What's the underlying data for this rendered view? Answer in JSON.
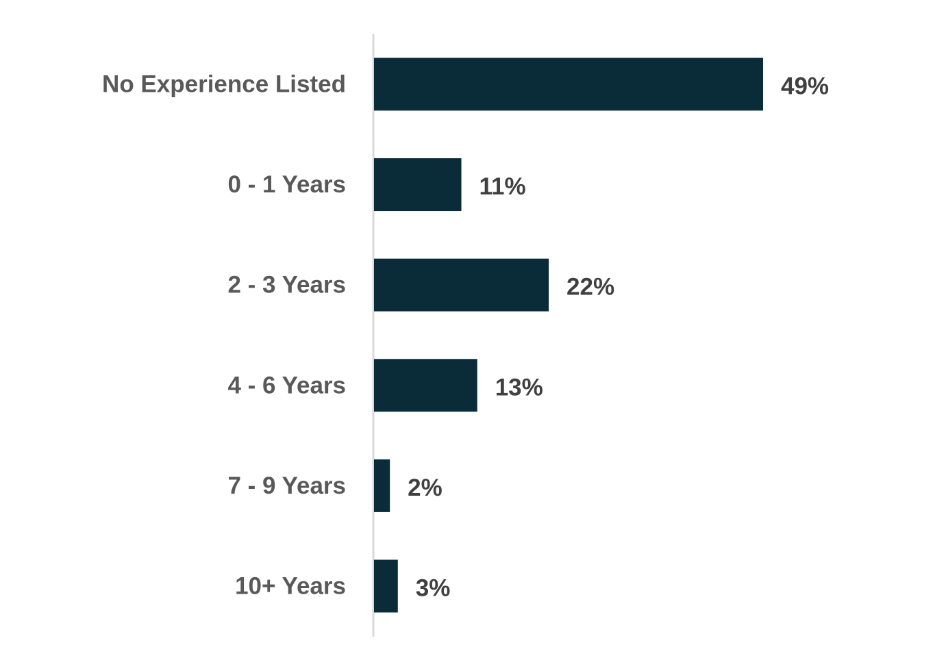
{
  "chart_data": {
    "type": "bar",
    "orientation": "horizontal",
    "categories": [
      "No Experience Listed",
      "0 - 1 Years",
      "2 - 3 Years",
      "4 - 6 Years",
      "7 - 9 Years",
      "10+ Years"
    ],
    "values": [
      49,
      11,
      22,
      13,
      2,
      3
    ],
    "value_labels": [
      "49%",
      "11%",
      "22%",
      "13%",
      "2%",
      "3%"
    ],
    "unit": "%",
    "title": "",
    "xlabel": "",
    "ylabel": "",
    "xlim": [
      0,
      100
    ],
    "grid": false,
    "legend": "none",
    "colors": {
      "bar": "#0a2b38",
      "axis": "#d9d9d9",
      "category_text": "#595959",
      "value_text": "#404040"
    }
  }
}
